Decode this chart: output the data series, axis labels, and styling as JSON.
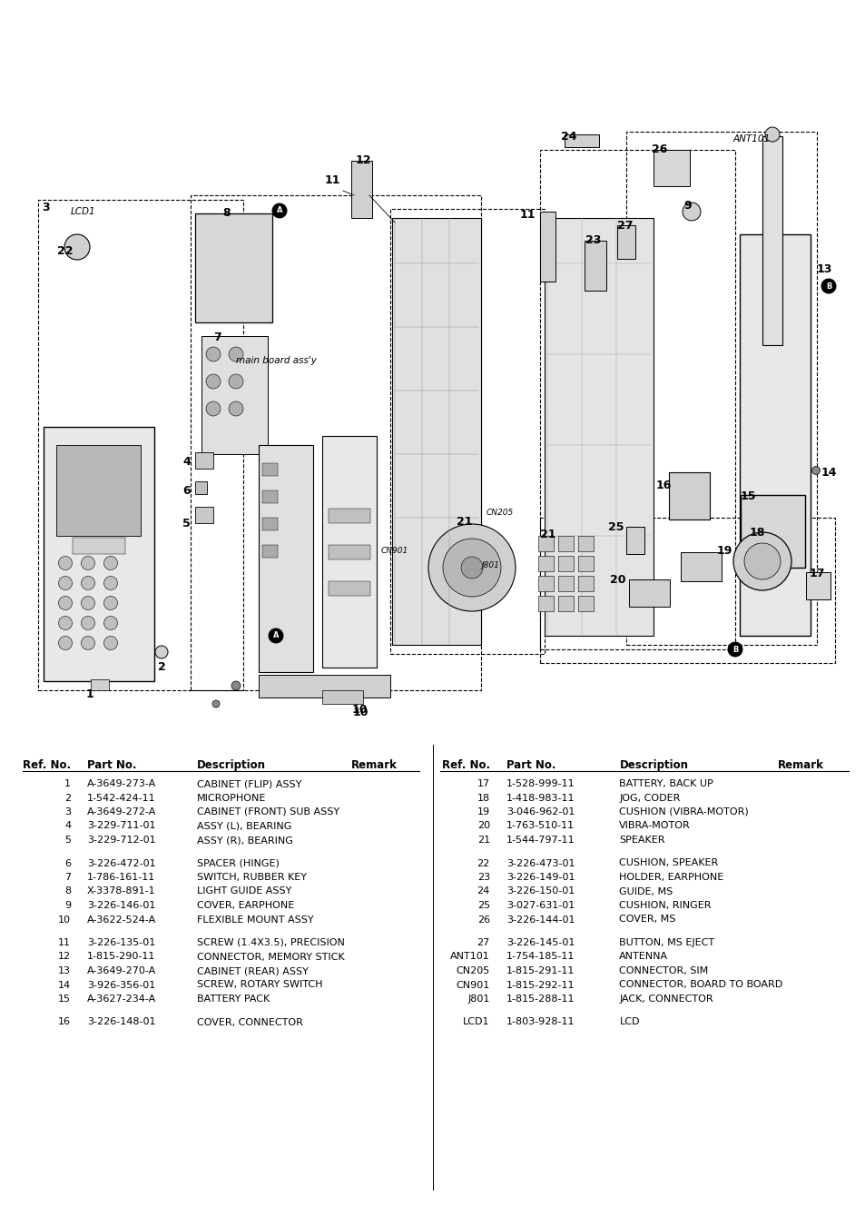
{
  "bg_color": "#ffffff",
  "fig_width": 9.54,
  "fig_height": 13.51,
  "dpi": 100,
  "left_table": {
    "headers": [
      "Ref. No.",
      "Part No.",
      "Description",
      "Remark"
    ],
    "groups": [
      [
        [
          "1",
          "A-3649-273-A",
          "CABINET (FLIP) ASSY",
          ""
        ],
        [
          "2",
          "1-542-424-11",
          "MICROPHONE",
          ""
        ],
        [
          "3",
          "A-3649-272-A",
          "CABINET (FRONT) SUB ASSY",
          ""
        ],
        [
          "4",
          "3-229-711-01",
          "ASSY (L), BEARING",
          ""
        ],
        [
          "5",
          "3-229-712-01",
          "ASSY (R), BEARING",
          ""
        ]
      ],
      [
        [
          "6",
          "3-226-472-01",
          "SPACER (HINGE)",
          ""
        ],
        [
          "7",
          "1-786-161-11",
          "SWITCH, RUBBER KEY",
          ""
        ],
        [
          "8",
          "X-3378-891-1",
          "LIGHT GUIDE ASSY",
          ""
        ],
        [
          "9",
          "3-226-146-01",
          "COVER, EARPHONE",
          ""
        ],
        [
          "10",
          "A-3622-524-A",
          "FLEXIBLE MOUNT ASSY",
          ""
        ]
      ],
      [
        [
          "11",
          "3-226-135-01",
          "SCREW (1.4X3.5), PRECISION",
          ""
        ],
        [
          "12",
          "1-815-290-11",
          "CONNECTOR, MEMORY STICK",
          ""
        ],
        [
          "13",
          "A-3649-270-A",
          "CABINET (REAR) ASSY",
          ""
        ],
        [
          "14",
          "3-926-356-01",
          "SCREW, ROTARY SWITCH",
          ""
        ],
        [
          "15",
          "A-3627-234-A",
          "BATTERY PACK",
          ""
        ]
      ],
      [
        [
          "16",
          "3-226-148-01",
          "COVER, CONNECTOR",
          ""
        ]
      ]
    ]
  },
  "right_table": {
    "headers": [
      "Ref. No.",
      "Part No.",
      "Description",
      "Remark"
    ],
    "groups": [
      [
        [
          "17",
          "1-528-999-11",
          "BATTERY, BACK UP",
          ""
        ],
        [
          "18",
          "1-418-983-11",
          "JOG, CODER",
          ""
        ],
        [
          "19",
          "3-046-962-01",
          "CUSHION (VIBRA-MOTOR)",
          ""
        ],
        [
          "20",
          "1-763-510-11",
          "VIBRA-MOTOR",
          ""
        ],
        [
          "21",
          "1-544-797-11",
          "SPEAKER",
          ""
        ]
      ],
      [
        [
          "22",
          "3-226-473-01",
          "CUSHION, SPEAKER",
          ""
        ],
        [
          "23",
          "3-226-149-01",
          "HOLDER, EARPHONE",
          ""
        ],
        [
          "24",
          "3-226-150-01",
          "GUIDE, MS",
          ""
        ],
        [
          "25",
          "3-027-631-01",
          "CUSHION, RINGER",
          ""
        ],
        [
          "26",
          "3-226-144-01",
          "COVER, MS",
          ""
        ]
      ],
      [
        [
          "27",
          "3-226-145-01",
          "BUTTON, MS EJECT",
          ""
        ],
        [
          "ANT101",
          "1-754-185-11",
          "ANTENNA",
          ""
        ],
        [
          "CN205",
          "1-815-291-11",
          "CONNECTOR, SIM",
          ""
        ],
        [
          "CN901",
          "1-815-292-11",
          "CONNECTOR, BOARD TO BOARD",
          ""
        ],
        [
          "J801",
          "1-815-288-11",
          "JACK, CONNECTOR",
          ""
        ]
      ],
      [
        [
          "LCD1",
          "1-803-928-11",
          "LCD",
          ""
        ]
      ]
    ]
  }
}
